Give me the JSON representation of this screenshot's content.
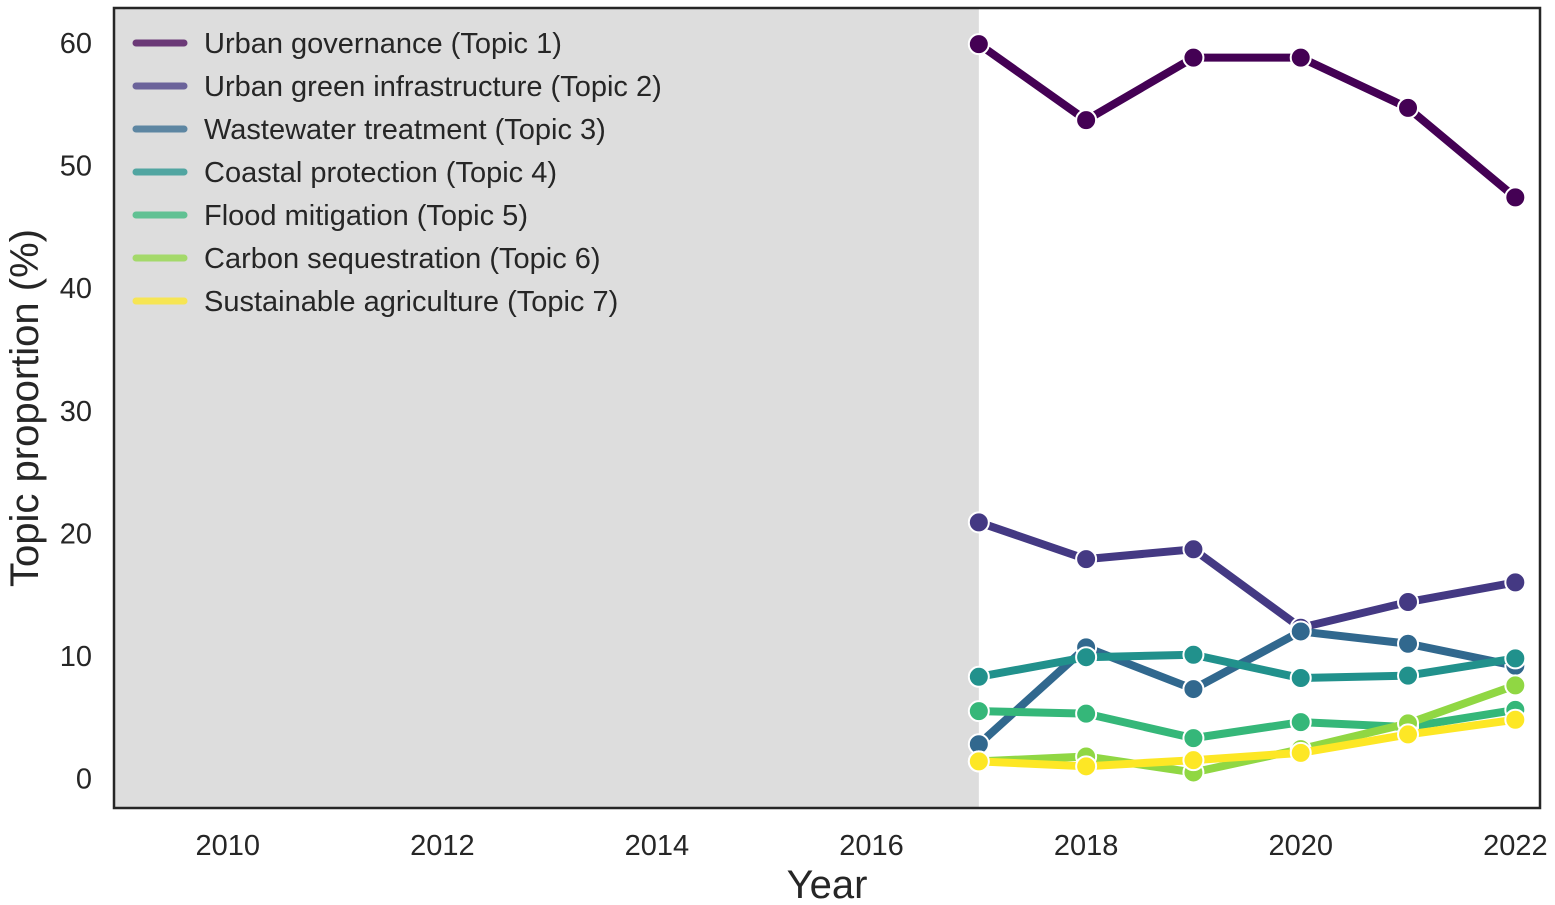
{
  "chart_data": {
    "type": "line",
    "title": "",
    "xlabel": "Year",
    "ylabel": "Topic proportion (%)",
    "xlim": [
      2008.94,
      2022.23
    ],
    "ylim": [
      -2.4,
      62.85
    ],
    "xticks": [
      "2010",
      "2012",
      "2014",
      "2016",
      "2018",
      "2020",
      "2022"
    ],
    "yticks": [
      "0",
      "10",
      "20",
      "30",
      "40",
      "50",
      "60"
    ],
    "shaded_region": {
      "x_from": 2008.94,
      "x_to": 2017,
      "color": "#dddddd"
    },
    "grid": false,
    "legend_position": "top-left",
    "x": [
      2017,
      2018,
      2019,
      2020,
      2021,
      2022
    ],
    "series": [
      {
        "name": "Urban governance (Topic 1)",
        "color": "#440154",
        "values": [
          59.9,
          53.7,
          58.8,
          58.8,
          54.7,
          47.4
        ]
      },
      {
        "name": "Urban green infrastructure (Topic 2)",
        "color": "#443983",
        "values": [
          20.9,
          17.9,
          18.7,
          12.3,
          14.4,
          16.0
        ]
      },
      {
        "name": "Wastewater treatment (Topic 3)",
        "color": "#31688e",
        "values": [
          2.8,
          10.7,
          7.3,
          12.0,
          11.0,
          9.2
        ]
      },
      {
        "name": "Coastal protection (Topic 4)",
        "color": "#21918c",
        "values": [
          8.3,
          9.9,
          10.1,
          8.2,
          8.4,
          9.8
        ]
      },
      {
        "name": "Flood mitigation (Topic 5)",
        "color": "#35b779",
        "values": [
          5.5,
          5.3,
          3.3,
          4.6,
          4.2,
          5.6
        ]
      },
      {
        "name": "Carbon sequestration (Topic 6)",
        "color": "#90d743",
        "values": [
          1.4,
          1.8,
          0.5,
          2.4,
          4.5,
          7.6
        ]
      },
      {
        "name": "Sustainable agriculture (Topic 7)",
        "color": "#fde725",
        "values": [
          1.4,
          1.0,
          1.5,
          2.1,
          3.6,
          4.8
        ]
      }
    ]
  }
}
